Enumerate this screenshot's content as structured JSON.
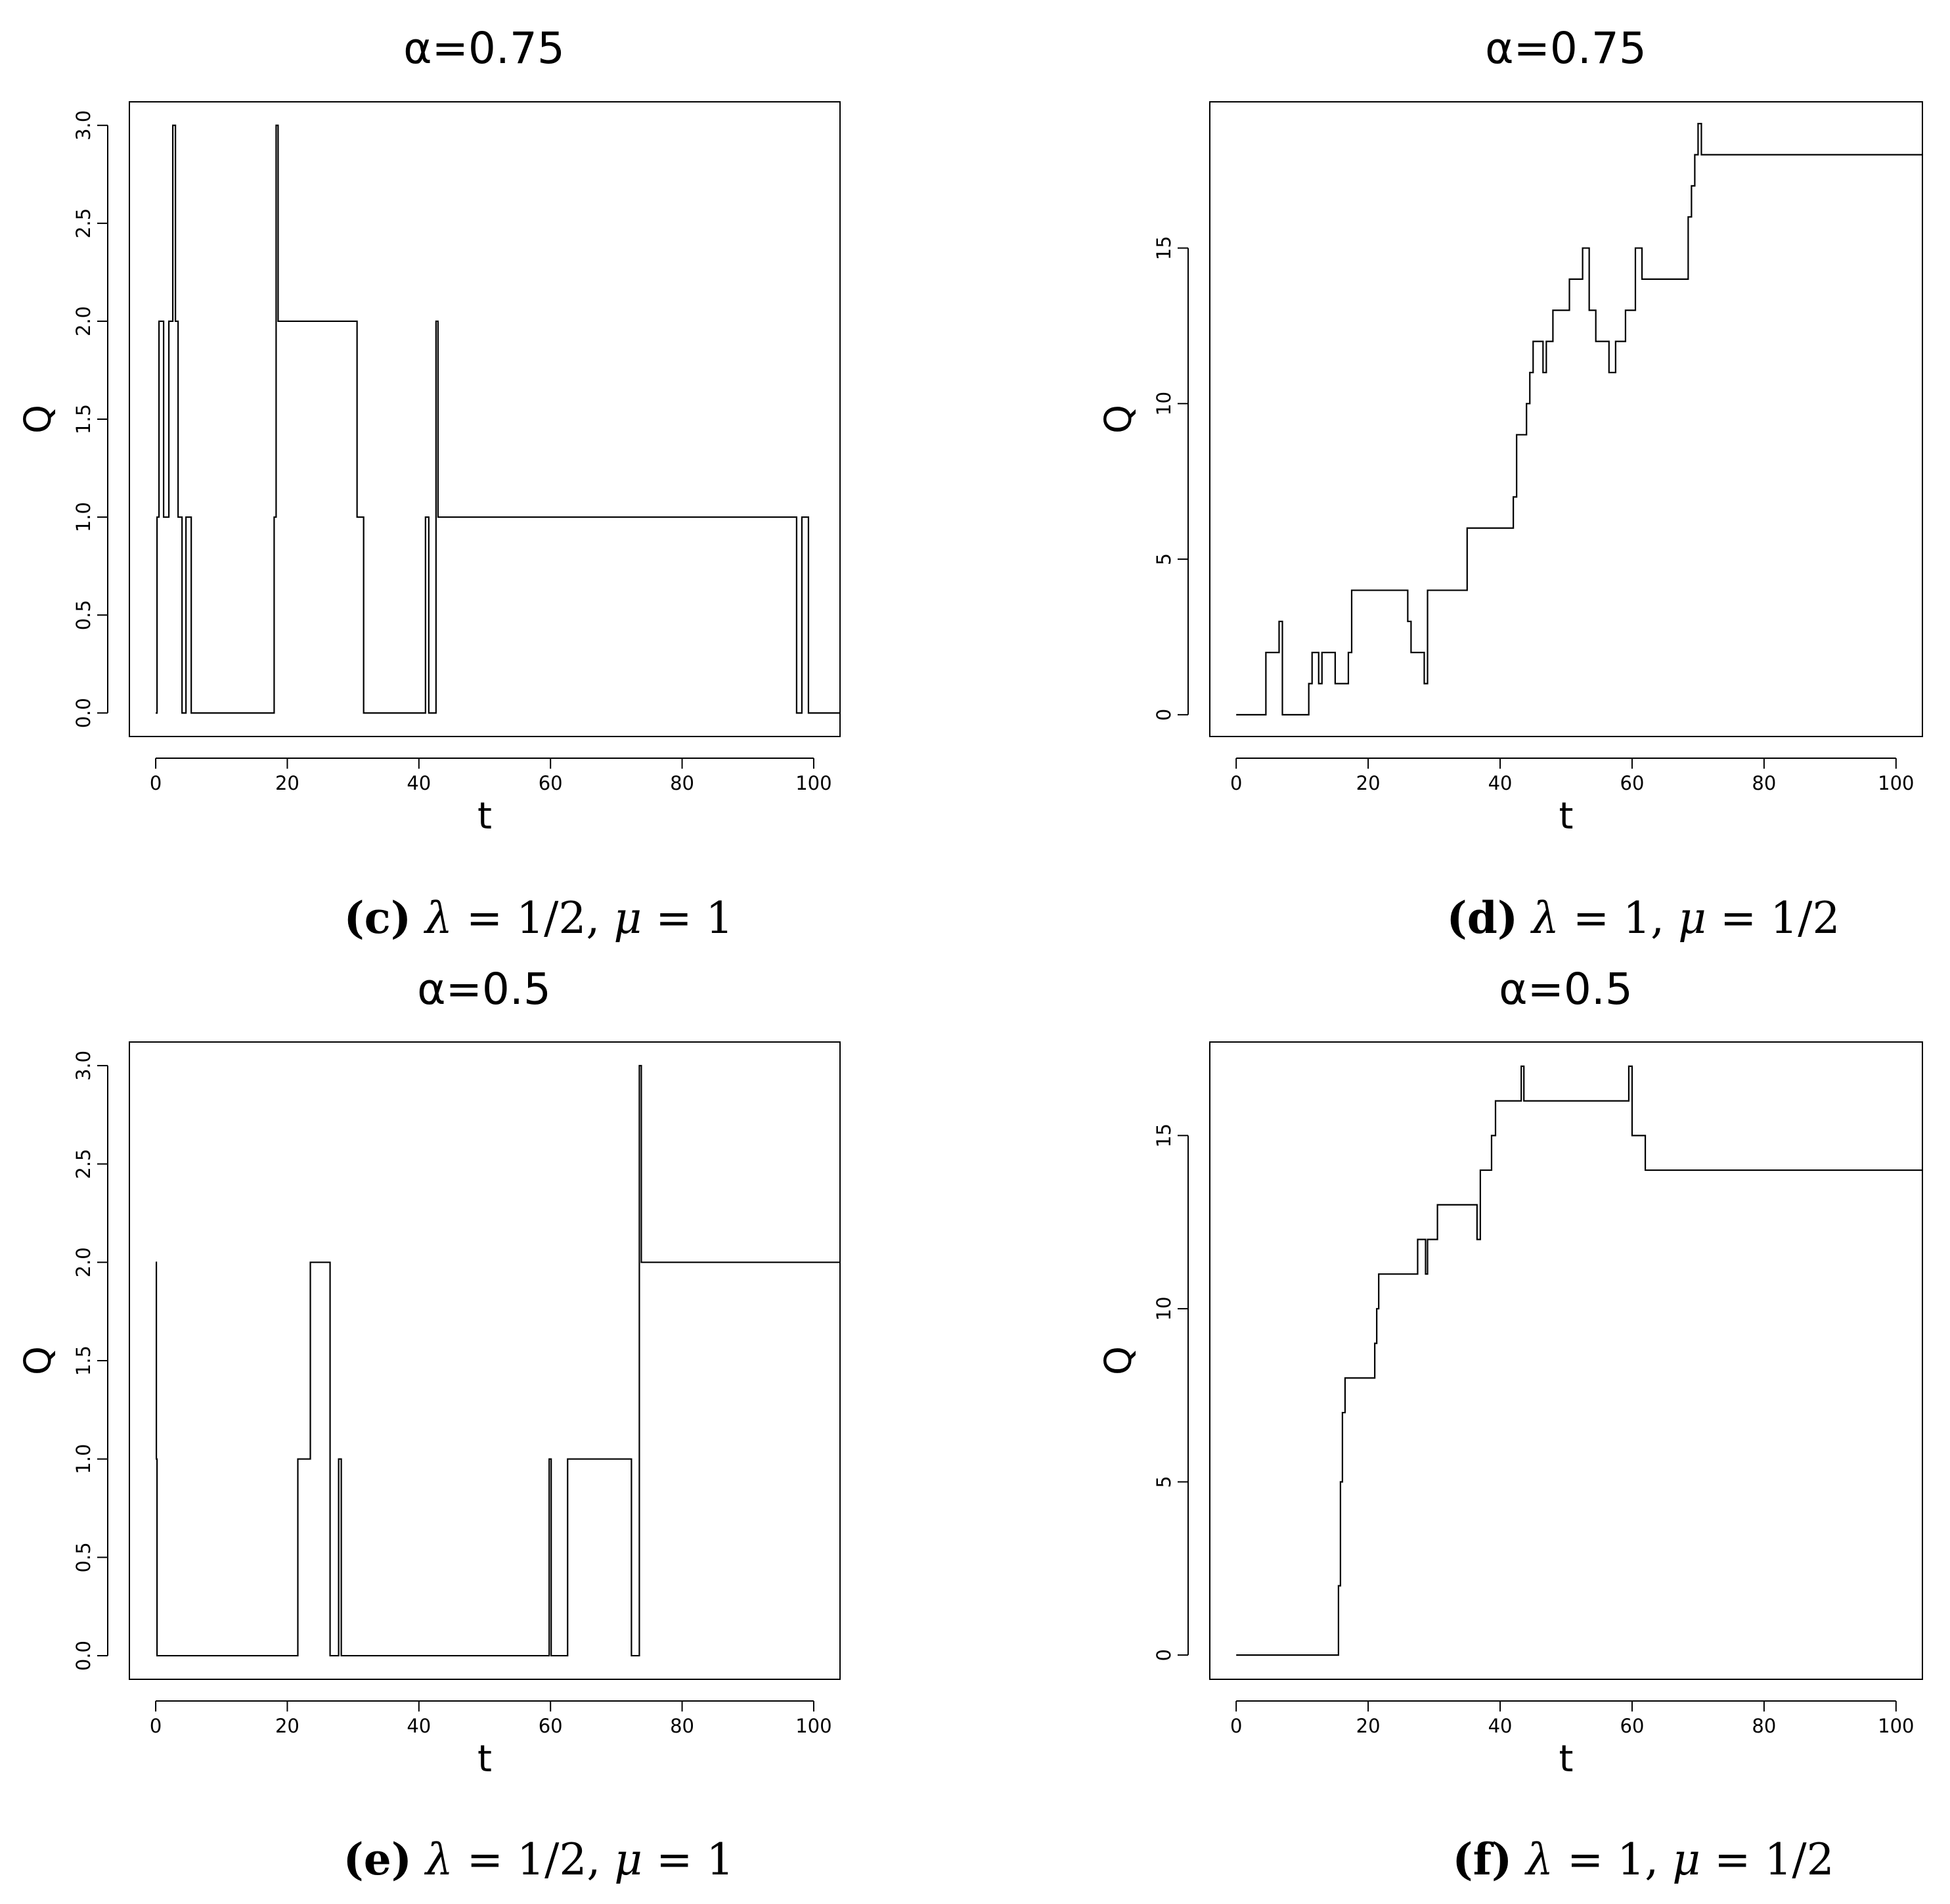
{
  "chart_data": [
    {
      "type": "line",
      "step": true,
      "title": "α=0.75",
      "xlabel": "t",
      "ylabel": "Q",
      "xlim": [
        -4,
        104
      ],
      "ylim": [
        -0.12,
        3.12
      ],
      "xticks": [
        0,
        20,
        40,
        60,
        80,
        100
      ],
      "yticks": [
        0.0,
        0.5,
        1.0,
        1.5,
        2.0,
        2.5,
        3.0
      ],
      "ytick_labels": [
        "0.0",
        "0.5",
        "1.0",
        "1.5",
        "2.0",
        "2.5",
        "3.0"
      ],
      "caption": {
        "letter": "(c)",
        "lambda": "1/2",
        "mu": "1"
      },
      "series": [
        {
          "x": [
            0,
            0.2,
            0.5,
            1.2,
            2.0,
            2.6,
            3.0,
            3.4,
            4.0,
            4.6,
            5.4,
            6.4,
            18.0,
            18.3,
            18.6,
            19.0,
            30.6,
            31.6,
            41.0,
            41.5,
            42.6,
            42.9,
            43.1,
            97.4,
            98.2,
            99.2,
            99.8,
            104
          ],
          "y": [
            0,
            1,
            2,
            1,
            2,
            3,
            2,
            1,
            0,
            1,
            0,
            0,
            1,
            3,
            2,
            2,
            1,
            0,
            1,
            0,
            2,
            1,
            1,
            0,
            1,
            0,
            0,
            0
          ]
        }
      ]
    },
    {
      "type": "line",
      "step": true,
      "title": "α=0.75",
      "xlabel": "t",
      "ylabel": "Q",
      "xlim": [
        -4,
        104
      ],
      "ylim": [
        -0.7,
        19.7
      ],
      "xticks": [
        0,
        20,
        40,
        60,
        80,
        100
      ],
      "yticks": [
        0,
        5,
        10,
        15
      ],
      "ytick_labels": [
        "0",
        "5",
        "10",
        "15"
      ],
      "caption": {
        "letter": "(d)",
        "lambda": "1",
        "mu": "1/2"
      },
      "series": [
        {
          "x": [
            0,
            4.5,
            6.5,
            7.0,
            11.0,
            11.5,
            12.5,
            13.0,
            15.0,
            17.0,
            17.5,
            26.0,
            26.5,
            28.5,
            29.0,
            35.0,
            42.0,
            42.5,
            44.0,
            44.5,
            45.0,
            46.5,
            47.0,
            48.0,
            50.5,
            52.5,
            53.5,
            54.5,
            56.5,
            57.5,
            59.0,
            60.5,
            61.5,
            62.5,
            68.5,
            69.0,
            69.5,
            70.0,
            70.5,
            104
          ],
          "y": [
            0,
            2,
            3,
            0,
            1,
            2,
            1,
            2,
            1,
            2,
            4,
            3,
            2,
            1,
            4,
            6,
            7,
            9,
            10,
            11,
            12,
            11,
            12,
            13,
            14,
            15,
            13,
            12,
            11,
            12,
            13,
            15,
            14,
            14,
            16,
            17,
            18,
            19,
            18,
            18
          ]
        }
      ]
    },
    {
      "type": "line",
      "step": true,
      "title": "α=0.5",
      "xlabel": "t",
      "ylabel": "Q",
      "xlim": [
        -4,
        104
      ],
      "ylim": [
        -0.12,
        3.12
      ],
      "xticks": [
        0,
        20,
        40,
        60,
        80,
        100
      ],
      "yticks": [
        0.0,
        0.5,
        1.0,
        1.5,
        2.0,
        2.5,
        3.0
      ],
      "ytick_labels": [
        "0.0",
        "0.5",
        "1.0",
        "1.5",
        "2.0",
        "2.5",
        "3.0"
      ],
      "caption": {
        "letter": "(e)",
        "lambda": "1/2",
        "mu": "1"
      },
      "series": [
        {
          "x": [
            0,
            0.1,
            0.2,
            21.6,
            22.0,
            23.5,
            26.5,
            27.8,
            28.2,
            59.8,
            60.1,
            62.6,
            72.3,
            73.5,
            73.8,
            104
          ],
          "y": [
            2,
            1,
            0,
            1,
            1,
            2,
            0,
            1,
            0,
            1,
            0,
            1,
            0,
            3,
            2,
            2
          ]
        }
      ]
    },
    {
      "type": "line",
      "step": true,
      "title": "α=0.5",
      "xlabel": "t",
      "ylabel": "Q",
      "xlim": [
        -4,
        104
      ],
      "ylim": [
        -0.7,
        17.7
      ],
      "xticks": [
        0,
        20,
        40,
        60,
        80,
        100
      ],
      "yticks": [
        0,
        5,
        10,
        15
      ],
      "ytick_labels": [
        "0",
        "5",
        "10",
        "15"
      ],
      "caption": {
        "letter": "(f)",
        "lambda": "1",
        "mu": "1/2"
      },
      "series": [
        {
          "x": [
            0,
            15.5,
            15.8,
            16.1,
            16.5,
            21.0,
            21.3,
            21.6,
            27.5,
            28.7,
            29.0,
            30.5,
            36.5,
            37.0,
            38.0,
            38.7,
            39.3,
            43.2,
            43.6,
            59.5,
            60.0,
            62.0,
            104
          ],
          "y": [
            0,
            2,
            5,
            7,
            8,
            9,
            10,
            11,
            12,
            11,
            12,
            13,
            12,
            14,
            14,
            15,
            16,
            17,
            16,
            17,
            15,
            14,
            14
          ]
        }
      ]
    }
  ]
}
